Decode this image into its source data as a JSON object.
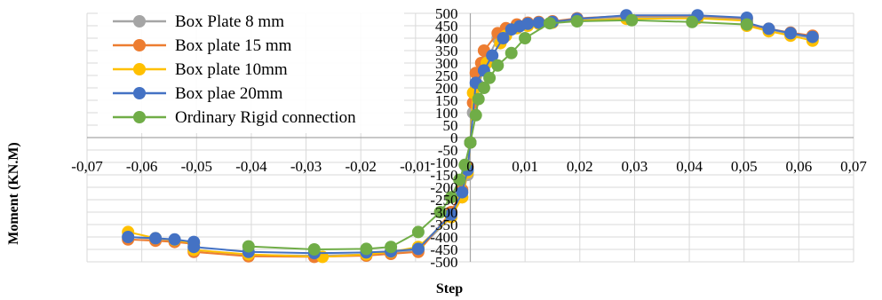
{
  "chart_data": {
    "type": "scatter",
    "title": "",
    "xlabel": "Step",
    "ylabel": "Moment (KN.M)",
    "xlim": [
      -0.07,
      0.07
    ],
    "ylim": [
      -500,
      500
    ],
    "grid": true,
    "legend_position": "top-left",
    "x_ticks": [
      -0.07,
      -0.06,
      -0.05,
      -0.04,
      -0.03,
      -0.02,
      -0.01,
      0,
      0.01,
      0.02,
      0.03,
      0.04,
      0.05,
      0.06,
      0.07
    ],
    "x_tick_labels": [
      "-0,07",
      "-0,06",
      "-0,05",
      "-0,04",
      "-0,03",
      "-0,02",
      "-0,01",
      "0",
      "0,01",
      "0,02",
      "0,03",
      "0,04",
      "0,05",
      "0,06",
      "0,07"
    ],
    "y_ticks": [
      500,
      450,
      400,
      350,
      300,
      250,
      200,
      150,
      100,
      50,
      0,
      -50,
      -100,
      -150,
      -200,
      -250,
      -300,
      -350,
      -400,
      -450,
      -500
    ],
    "y_tick_labels": [
      "500",
      "450",
      "400",
      "350",
      "300",
      "250",
      "200",
      "150",
      "100",
      "50",
      "0",
      "-50",
      "-100",
      "-150",
      "-200",
      "-250",
      "-300",
      "-350",
      "-400",
      "-450",
      "-500"
    ],
    "series": [
      {
        "name": "Box Plate 8 mm",
        "color": "#a5a5a5",
        "points": [
          [
            -0.0625,
            -400
          ],
          [
            -0.0575,
            -408
          ],
          [
            -0.054,
            -415
          ],
          [
            -0.0505,
            -425
          ],
          [
            -0.0505,
            -452
          ],
          [
            -0.0405,
            -472
          ],
          [
            -0.0285,
            -475
          ],
          [
            -0.019,
            -470
          ],
          [
            -0.0145,
            -465
          ],
          [
            -0.0095,
            -452
          ],
          [
            -0.0035,
            -320
          ],
          [
            -0.0015,
            -240
          ],
          [
            -0.0005,
            -150
          ],
          [
            0,
            -20
          ],
          [
            0.0005,
            100
          ],
          [
            0.0015,
            210
          ],
          [
            0.003,
            310
          ],
          [
            0.005,
            400
          ],
          [
            0.0065,
            430
          ],
          [
            0.0085,
            445
          ],
          [
            0.0105,
            455
          ],
          [
            0.0125,
            460
          ],
          [
            0.015,
            465
          ],
          [
            0.0195,
            475
          ],
          [
            0.0285,
            485
          ],
          [
            0.0415,
            485
          ],
          [
            0.0505,
            475
          ],
          [
            0.0505,
            455
          ],
          [
            0.0545,
            432
          ],
          [
            0.0585,
            415
          ],
          [
            0.0625,
            400
          ]
        ]
      },
      {
        "name": "Box plate 15 mm",
        "color": "#ed7d31",
        "points": [
          [
            -0.0625,
            -410
          ],
          [
            -0.0575,
            -415
          ],
          [
            -0.054,
            -420
          ],
          [
            -0.0505,
            -428
          ],
          [
            -0.0505,
            -460
          ],
          [
            -0.0405,
            -478
          ],
          [
            -0.0285,
            -480
          ],
          [
            -0.019,
            -475
          ],
          [
            -0.0145,
            -468
          ],
          [
            -0.0095,
            -460
          ],
          [
            -0.0035,
            -300
          ],
          [
            -0.0015,
            -210
          ],
          [
            -0.0005,
            -120
          ],
          [
            0,
            -20
          ],
          [
            0.0005,
            140
          ],
          [
            0.001,
            260
          ],
          [
            0.002,
            300
          ],
          [
            0.0025,
            350
          ],
          [
            0.005,
            420
          ],
          [
            0.0065,
            440
          ],
          [
            0.0085,
            455
          ],
          [
            0.0105,
            462
          ],
          [
            0.0125,
            465
          ],
          [
            0.015,
            468
          ],
          [
            0.0195,
            480
          ],
          [
            0.0285,
            490
          ],
          [
            0.0415,
            490
          ],
          [
            0.0505,
            480
          ],
          [
            0.0505,
            458
          ],
          [
            0.0545,
            438
          ],
          [
            0.0585,
            422
          ],
          [
            0.0625,
            410
          ]
        ]
      },
      {
        "name": "Box plate 10mm",
        "color": "#ffc000",
        "points": [
          [
            -0.0625,
            -380
          ],
          [
            -0.0575,
            -405
          ],
          [
            -0.054,
            -412
          ],
          [
            -0.0505,
            -425
          ],
          [
            -0.0505,
            -452
          ],
          [
            -0.0405,
            -470
          ],
          [
            -0.027,
            -480
          ],
          [
            -0.019,
            -470
          ],
          [
            -0.0145,
            -460
          ],
          [
            -0.0095,
            -440
          ],
          [
            -0.0035,
            -320
          ],
          [
            -0.0015,
            -240
          ],
          [
            -0.0005,
            -140
          ],
          [
            0,
            -20
          ],
          [
            0.0005,
            180
          ],
          [
            0.003,
            300
          ],
          [
            0.0055,
            380
          ],
          [
            0.0065,
            410
          ],
          [
            0.0085,
            440
          ],
          [
            0.0105,
            450
          ],
          [
            0.0125,
            458
          ],
          [
            0.015,
            462
          ],
          [
            0.0195,
            470
          ],
          [
            0.0285,
            478
          ],
          [
            0.0415,
            480
          ],
          [
            0.0505,
            470
          ],
          [
            0.0505,
            450
          ],
          [
            0.0545,
            428
          ],
          [
            0.0585,
            410
          ],
          [
            0.0625,
            390
          ]
        ]
      },
      {
        "name": "Box plae 20mm",
        "color": "#4472c4",
        "points": [
          [
            -0.0625,
            -400
          ],
          [
            -0.0575,
            -405
          ],
          [
            -0.054,
            -410
          ],
          [
            -0.0505,
            -420
          ],
          [
            -0.0505,
            -440
          ],
          [
            -0.0405,
            -460
          ],
          [
            -0.0285,
            -465
          ],
          [
            -0.019,
            -462
          ],
          [
            -0.0145,
            -458
          ],
          [
            -0.0095,
            -448
          ],
          [
            -0.0035,
            -310
          ],
          [
            -0.0015,
            -220
          ],
          [
            -0.0005,
            -130
          ],
          [
            0,
            -20
          ],
          [
            0.001,
            220
          ],
          [
            0.0025,
            270
          ],
          [
            0.004,
            330
          ],
          [
            0.006,
            400
          ],
          [
            0.0075,
            435
          ],
          [
            0.009,
            448
          ],
          [
            0.0105,
            458
          ],
          [
            0.0125,
            462
          ],
          [
            0.015,
            465
          ],
          [
            0.0195,
            478
          ],
          [
            0.0285,
            492
          ],
          [
            0.0415,
            492
          ],
          [
            0.0505,
            482
          ],
          [
            0.0505,
            462
          ],
          [
            0.0545,
            438
          ],
          [
            0.0585,
            420
          ],
          [
            0.0625,
            405
          ]
        ]
      },
      {
        "name": "Ordinary Rigid connection",
        "color": "#70ad47",
        "points": [
          [
            -0.0405,
            -438
          ],
          [
            -0.0285,
            -450
          ],
          [
            -0.019,
            -448
          ],
          [
            -0.0145,
            -440
          ],
          [
            -0.0095,
            -380
          ],
          [
            -0.0055,
            -300
          ],
          [
            -0.0035,
            -240
          ],
          [
            -0.002,
            -170
          ],
          [
            -0.001,
            -110
          ],
          [
            0,
            -20
          ],
          [
            0.001,
            90
          ],
          [
            0.0015,
            155
          ],
          [
            0.0025,
            200
          ],
          [
            0.0035,
            240
          ],
          [
            0.005,
            290
          ],
          [
            0.0075,
            340
          ],
          [
            0.01,
            400
          ],
          [
            0.0145,
            460
          ],
          [
            0.0195,
            468
          ],
          [
            0.0295,
            472
          ],
          [
            0.0405,
            465
          ],
          [
            0.0505,
            455
          ]
        ]
      }
    ]
  }
}
